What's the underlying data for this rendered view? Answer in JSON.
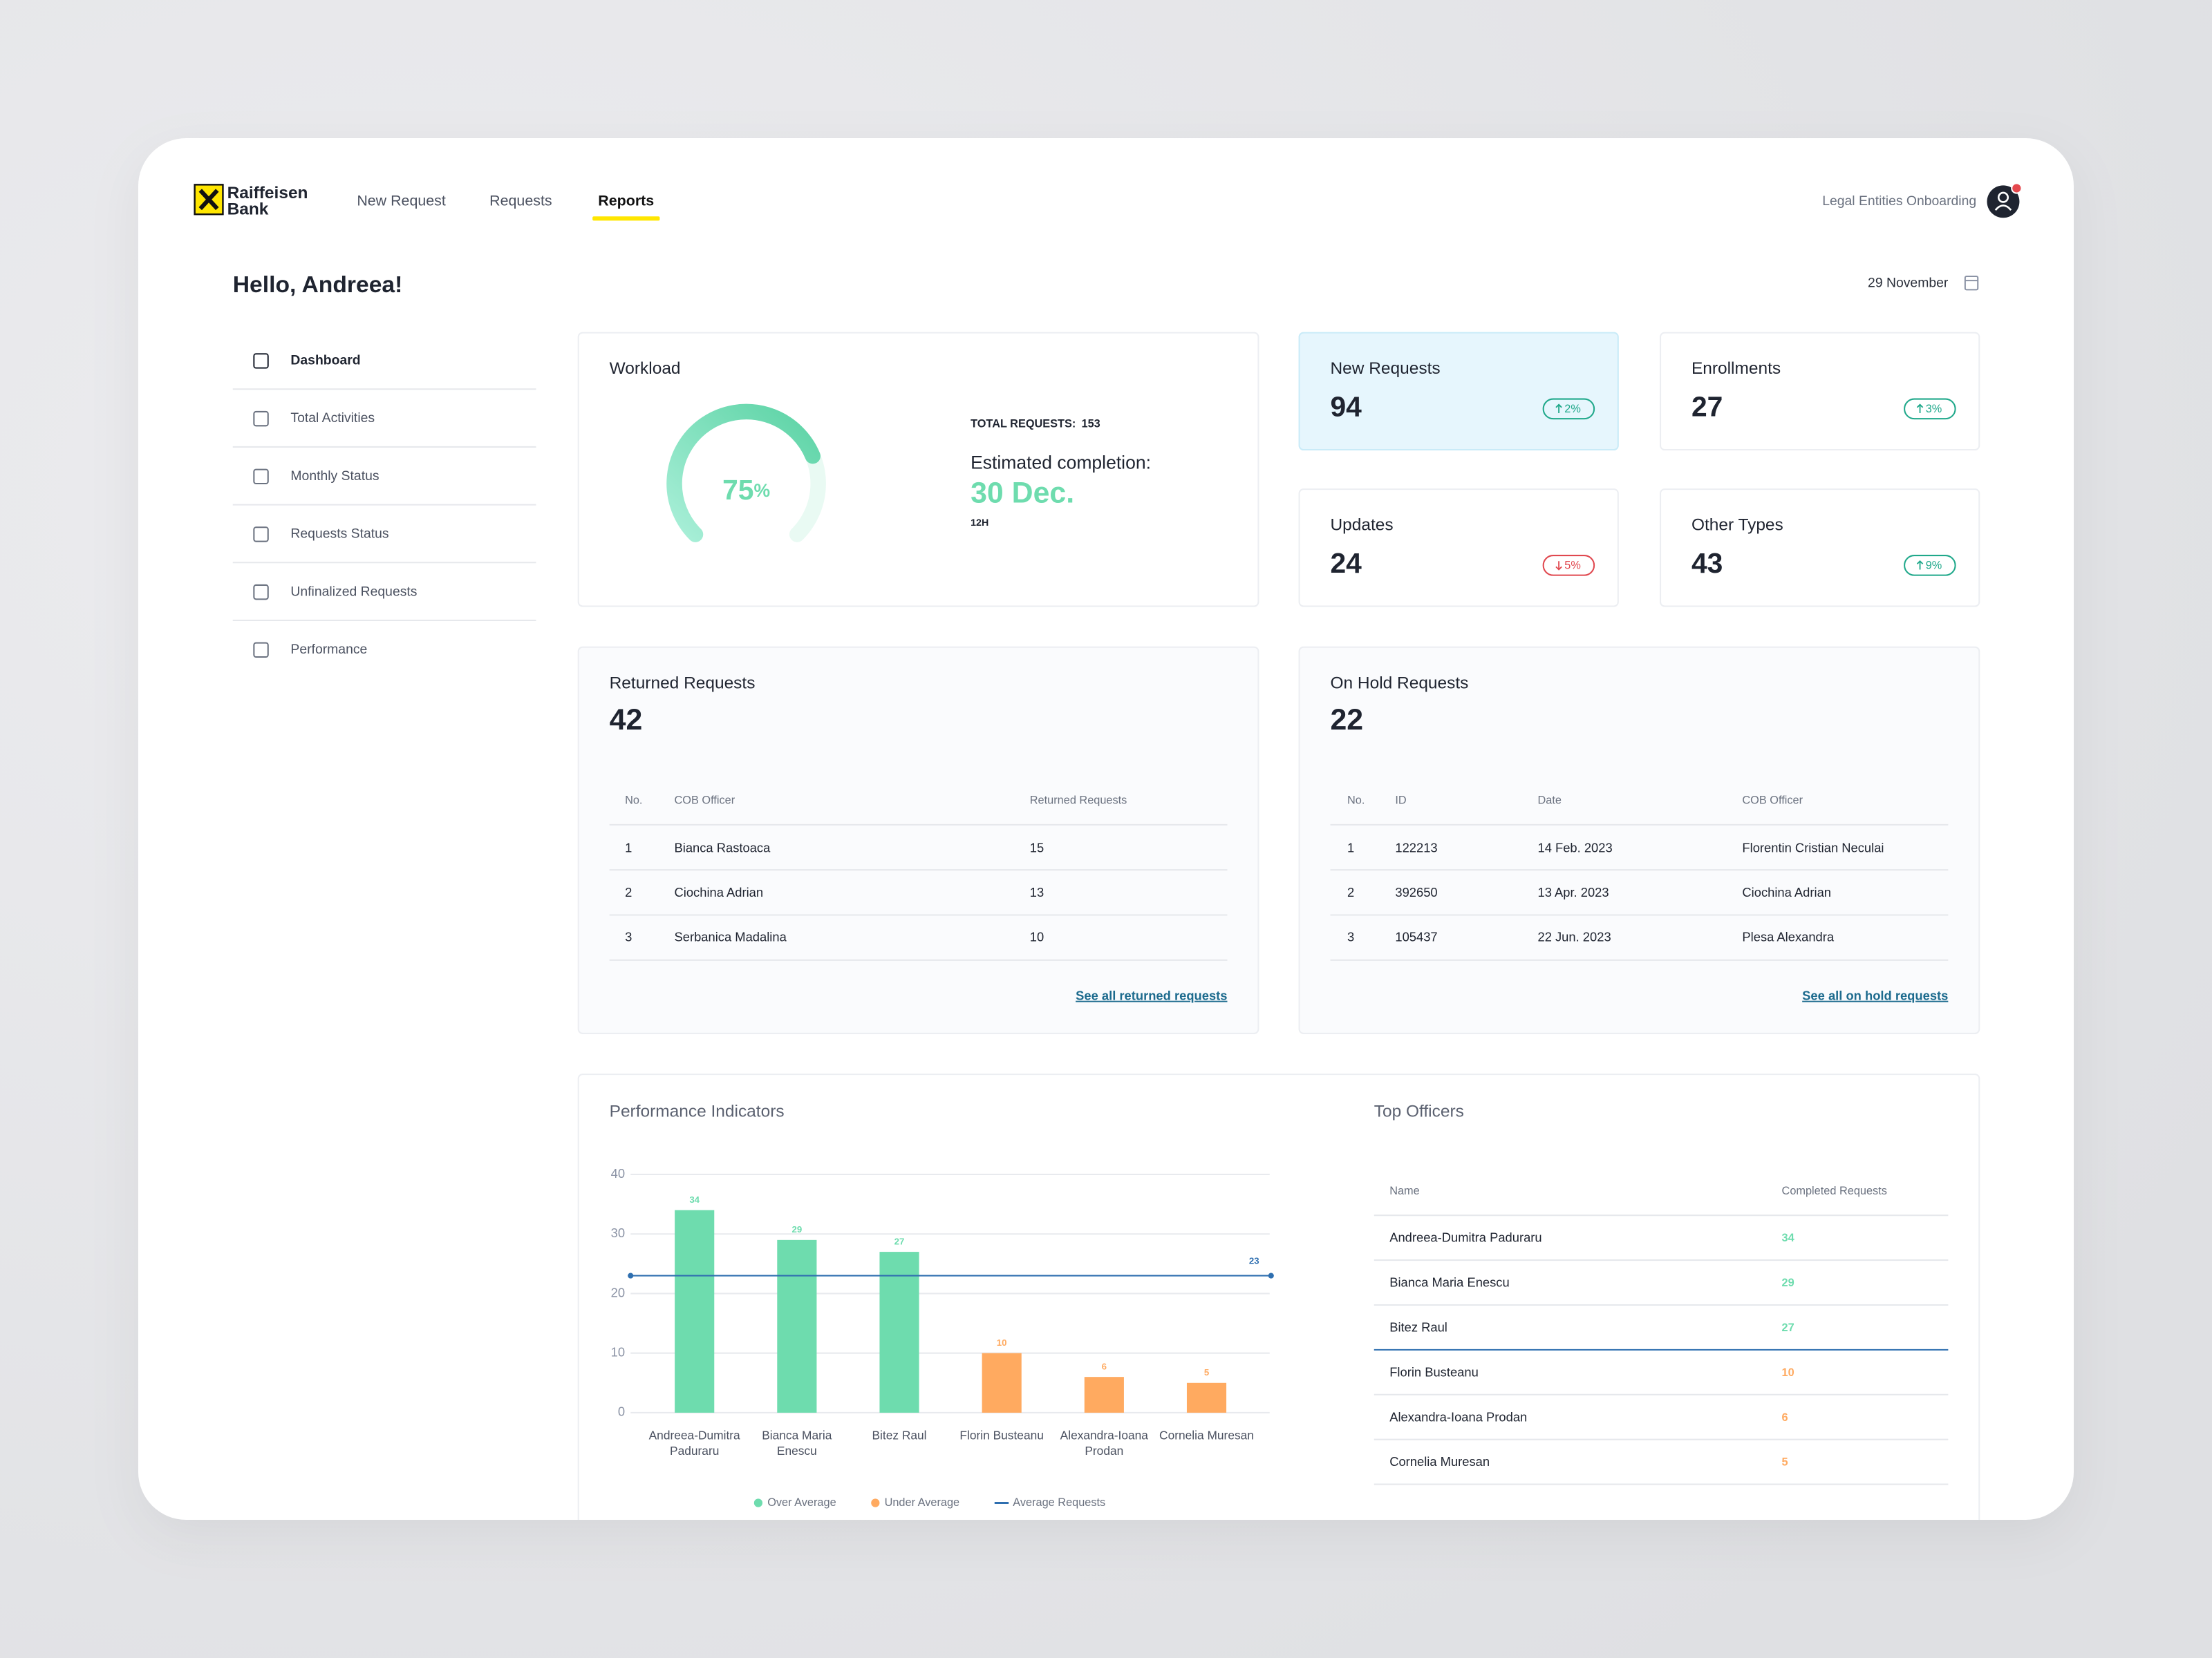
{
  "nav": {
    "brand": "Raiffeisen",
    "brand_sub": "Bank",
    "links": [
      "New Request",
      "Requests",
      "Reports"
    ],
    "active": 2,
    "user_label": "Legal Entities Onboarding"
  },
  "greeting": "Hello, Andreea!",
  "date": "29 November",
  "sidebar": [
    "Dashboard",
    "Total Activities",
    "Monthly Status",
    "Requests Status",
    "Unfinalized Requests",
    "Performance"
  ],
  "workload": {
    "title": "Workload",
    "percent": 75,
    "percent_unit": "%",
    "total_label": "TOTAL REQUESTS:",
    "total": 153,
    "estimate_label": "Estimated completion:",
    "estimate": "30 Dec.",
    "estimate_time": "12H"
  },
  "stats": [
    {
      "title": "New Requests",
      "value": 94,
      "change": "2%",
      "direction": "up"
    },
    {
      "title": "Enrollments",
      "value": 27,
      "change": "3%",
      "direction": "up"
    },
    {
      "title": "Updates",
      "value": 24,
      "change": "5%",
      "direction": "down"
    },
    {
      "title": "Other Types",
      "value": 43,
      "change": "9%",
      "direction": "up"
    }
  ],
  "returned": {
    "title": "Returned Requests",
    "total": 42,
    "columns": [
      "No.",
      "COB Officer",
      "Returned Requests"
    ],
    "rows": [
      [
        1,
        "Bianca Rastoaca",
        15
      ],
      [
        2,
        "Ciochina Adrian",
        13
      ],
      [
        3,
        "Serbanica Madalina",
        10
      ]
    ],
    "link": "See all returned requests"
  },
  "on_hold": {
    "title": "On Hold Requests",
    "total": 22,
    "columns": [
      "No.",
      "ID",
      "Date",
      "COB Officer"
    ],
    "rows": [
      [
        1,
        "122213",
        "14 Feb. 2023",
        "Florentin Cristian Neculai"
      ],
      [
        2,
        "392650",
        "13 Apr. 2023",
        "Ciochina Adrian"
      ],
      [
        3,
        "105437",
        "22 Jun. 2023",
        "Plesa Alexandra"
      ]
    ],
    "link": "See all on hold requests"
  },
  "chart_data": {
    "type": "bar",
    "title": "Performance Indicators",
    "categories": [
      "Andreea-Dumitra Paduraru",
      "Bianca Maria Enescu",
      "Bitez Raul",
      "Florin Busteanu",
      "Alexandra-Ioana Prodan",
      "Cornelia Muresan"
    ],
    "values": [
      34,
      29,
      27,
      10,
      6,
      5
    ],
    "average": 23,
    "legend": [
      "Over Average",
      "Under Average",
      "Average Requests"
    ],
    "colors": [
      "#6edcae",
      "#ffaa60",
      "#2f6fb0"
    ],
    "ylim": [
      0,
      40
    ],
    "yticks": [
      0,
      10,
      20,
      30,
      40
    ],
    "grid": true
  },
  "top_officers": {
    "title": "Top Officers",
    "columns": [
      "Name",
      "Completed Requests"
    ],
    "rows": [
      [
        "Andreea-Dumitra Paduraru",
        34
      ],
      [
        "Bianca Maria Enescu",
        29
      ],
      [
        "Bitez Raul",
        27
      ],
      [
        "Florin Busteanu",
        10
      ],
      [
        "Alexandra-Ioana Prodan",
        6
      ],
      [
        "Cornelia Muresan",
        5
      ]
    ]
  }
}
